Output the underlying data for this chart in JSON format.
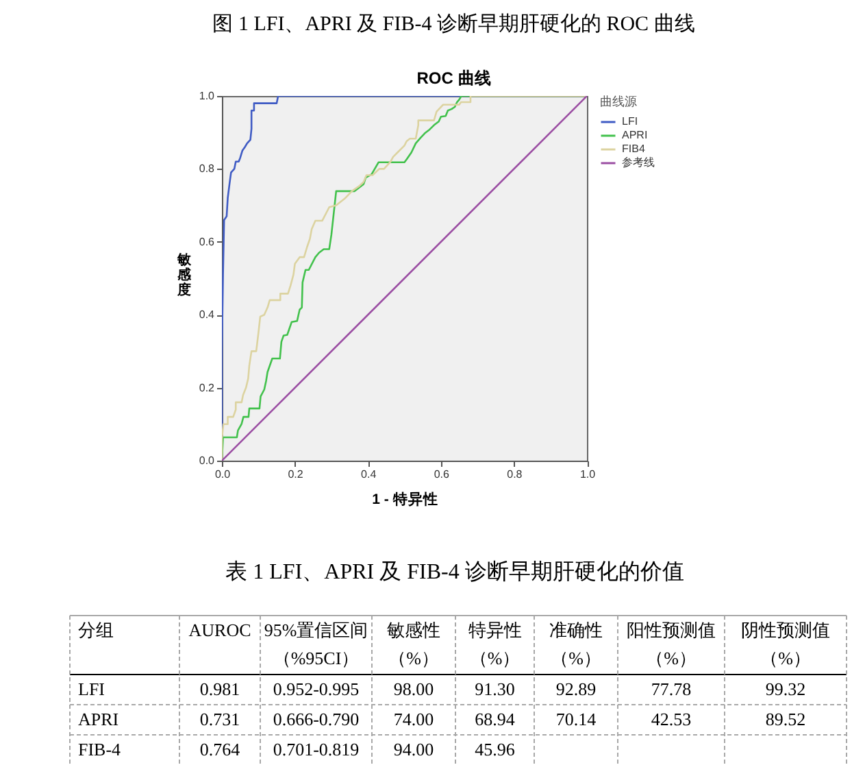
{
  "chart_data": [
    {
      "type": "line",
      "title": "图 1 LFI、APRI 及 FIB-4 诊断早期肝硬化的 ROC 曲线",
      "subtitle": "ROC 曲线",
      "xlabel": "1 - 特异性",
      "ylabel": "敏感度",
      "legend_title": "曲线源",
      "legend": "right",
      "xlim": [
        0,
        1
      ],
      "ylim": [
        0,
        1
      ],
      "xticks": [
        {
          "value": 0,
          "label": "0.0"
        },
        {
          "value": 0.2,
          "label": "0.2"
        },
        {
          "value": 0.4,
          "label": "0.4"
        },
        {
          "value": 0.6,
          "label": "0.6"
        },
        {
          "value": 0.8,
          "label": "0.8"
        },
        {
          "value": 1,
          "label": "1.0"
        }
      ],
      "yticks": [
        {
          "value": 0,
          "label": "0.0"
        },
        {
          "value": 0.2,
          "label": "0.2"
        },
        {
          "value": 0.4,
          "label": "0.4"
        },
        {
          "value": 0.6,
          "label": "0.6"
        },
        {
          "value": 0.8,
          "label": "0.8"
        },
        {
          "value": 1,
          "label": "1.0"
        }
      ],
      "series": [
        {
          "name": "LFI",
          "color": "#3f5bc4",
          "x": [
            0,
            0,
            0.003,
            0.006,
            0.013,
            0.016,
            0.021,
            0.025,
            0.034,
            0.038,
            0.046,
            0.05,
            0.056,
            0.063,
            0.069,
            0.078,
            0.081,
            0.081,
            0.088,
            0.088,
            0.15,
            0.154,
            1
          ],
          "values": [
            0,
            0.3,
            0.51,
            0.66,
            0.67,
            0.72,
            0.76,
            0.79,
            0.8,
            0.82,
            0.82,
            0.83,
            0.85,
            0.86,
            0.87,
            0.88,
            0.91,
            0.96,
            0.96,
            0.98,
            0.98,
            1,
            1
          ]
        },
        {
          "name": "APRI",
          "color": "#42c14c",
          "x": [
            0,
            0.003,
            0.041,
            0.044,
            0.054,
            0.059,
            0.073,
            0.075,
            0.103,
            0.106,
            0.116,
            0.121,
            0.125,
            0.138,
            0.159,
            0.163,
            0.169,
            0.179,
            0.191,
            0.206,
            0.213,
            0.219,
            0.221,
            0.229,
            0.238,
            0.256,
            0.266,
            0.279,
            0.294,
            0.3,
            0.313,
            0.363,
            0.388,
            0.394,
            0.41,
            0.429,
            0.5,
            0.506,
            0.519,
            0.531,
            0.544,
            0.556,
            0.569,
            0.581,
            0.594,
            0.6,
            0.613,
            0.619,
            0.629,
            0.638,
            0.644,
            0.65,
            0.656,
            1
          ],
          "values": [
            0,
            0.064,
            0.064,
            0.083,
            0.101,
            0.12,
            0.12,
            0.143,
            0.143,
            0.176,
            0.195,
            0.218,
            0.243,
            0.28,
            0.28,
            0.326,
            0.343,
            0.345,
            0.38,
            0.383,
            0.414,
            0.42,
            0.489,
            0.523,
            0.523,
            0.558,
            0.57,
            0.58,
            0.58,
            0.62,
            0.739,
            0.739,
            0.758,
            0.776,
            0.785,
            0.818,
            0.818,
            0.826,
            0.845,
            0.87,
            0.885,
            0.898,
            0.908,
            0.92,
            0.93,
            0.943,
            0.945,
            0.96,
            0.964,
            0.97,
            0.983,
            0.99,
            1,
            1
          ]
        },
        {
          "name": "FIB4",
          "color": "#dcd3a0",
          "x": [
            0,
            0,
            0.004,
            0.016,
            0.016,
            0.031,
            0.038,
            0.038,
            0.054,
            0.058,
            0.066,
            0.072,
            0.075,
            0.081,
            0.094,
            0.1,
            0.105,
            0.116,
            0.125,
            0.131,
            0.16,
            0.16,
            0.181,
            0.188,
            0.196,
            0.2,
            0.213,
            0.225,
            0.233,
            0.241,
            0.246,
            0.256,
            0.275,
            0.294,
            0.313,
            0.338,
            0.356,
            0.375,
            0.388,
            0.396,
            0.413,
            0.431,
            0.444,
            0.462,
            0.469,
            0.481,
            0.5,
            0.506,
            0.515,
            0.531,
            0.538,
            0.538,
            0.581,
            0.588,
            0.606,
            0.65,
            0.655,
            0.681,
            0.681,
            1
          ],
          "values": [
            0,
            0.06,
            0.1,
            0.1,
            0.12,
            0.12,
            0.14,
            0.16,
            0.16,
            0.18,
            0.2,
            0.225,
            0.26,
            0.3,
            0.3,
            0.35,
            0.395,
            0.4,
            0.42,
            0.44,
            0.44,
            0.458,
            0.458,
            0.48,
            0.51,
            0.54,
            0.558,
            0.558,
            0.585,
            0.608,
            0.635,
            0.658,
            0.658,
            0.695,
            0.7,
            0.72,
            0.739,
            0.752,
            0.764,
            0.783,
            0.783,
            0.8,
            0.8,
            0.82,
            0.833,
            0.845,
            0.864,
            0.876,
            0.883,
            0.883,
            0.92,
            0.933,
            0.933,
            0.957,
            0.976,
            0.976,
            0.983,
            0.983,
            1,
            1
          ]
        },
        {
          "name": "参考线",
          "color": "#9b4ea3",
          "x": [
            0,
            1
          ],
          "values": [
            0,
            1
          ]
        }
      ]
    },
    {
      "type": "other",
      "title": "表 1 LFI、APRI 及 FIB-4 诊断早期肝硬化的价值",
      "ylabel": "分组",
      "categories": [
        "AUROC",
        "95%置信区间（%95CI）",
        "敏感性（%）",
        "特异性（%）",
        "准确性（%）",
        "阳性预测值（%）",
        "阴性预测值（%）"
      ],
      "y_categories": [
        "LFI",
        "APRI",
        "FIB-4"
      ],
      "cell_labels": [
        [
          "0.981",
          "0.952-0.995",
          "98.00",
          "91.30",
          "92.89",
          "77.78",
          "99.32"
        ],
        [
          "0.731",
          "0.666-0.790",
          "74.00",
          "68.94",
          "70.14",
          "42.53",
          "89.52"
        ],
        [
          "0.764",
          "0.701-0.819",
          "94.00",
          "45.96",
          null,
          null,
          null
        ]
      ]
    }
  ]
}
